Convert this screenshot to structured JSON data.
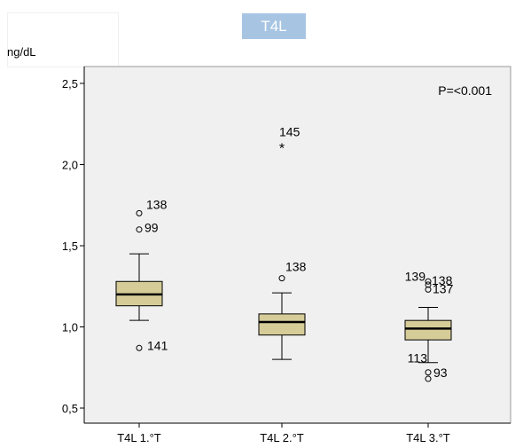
{
  "chart_data": {
    "type": "boxplot",
    "title": "T4L",
    "ylabel": "ng/dL",
    "ylim": [
      0.45,
      2.5
    ],
    "yticks": [
      "2,5",
      "2,0",
      "1,5",
      "1,0",
      "0,5"
    ],
    "ytick_values": [
      2.5,
      2.0,
      1.5,
      1.0,
      0.5
    ],
    "categories": [
      "T4L 1.°T",
      "T4L 2.°T",
      "T4L 3.°T"
    ],
    "annotation": "P=<0.001",
    "colors": {
      "box_fill": "#d5cc98",
      "plot_bg": "#f0f0f0",
      "title_bg": "#a7c5e3"
    },
    "boxes": [
      {
        "whisker_low": 1.04,
        "q1": 1.13,
        "median": 1.2,
        "q3": 1.28,
        "whisker_high": 1.45,
        "outliers": [
          {
            "value": 1.7,
            "label": "138",
            "marker": "circle"
          },
          {
            "value": 1.6,
            "label": "99",
            "marker": "circle"
          },
          {
            "value": 0.87,
            "label": "141",
            "marker": "circle"
          }
        ]
      },
      {
        "whisker_low": 0.8,
        "q1": 0.95,
        "median": 1.03,
        "q3": 1.08,
        "whisker_high": 1.21,
        "outliers": [
          {
            "value": 2.11,
            "label": "145",
            "marker": "star"
          },
          {
            "value": 1.3,
            "label": "138",
            "marker": "circle"
          }
        ]
      },
      {
        "whisker_low": 0.78,
        "q1": 0.92,
        "median": 0.99,
        "q3": 1.04,
        "whisker_high": 1.12,
        "outliers": [
          {
            "value": 1.28,
            "label": "139",
            "marker": "circle"
          },
          {
            "value": 1.26,
            "label": "138",
            "marker": "circle"
          },
          {
            "value": 1.23,
            "label": "137",
            "marker": "circle"
          },
          {
            "value": 0.72,
            "label": "113",
            "marker": "circle"
          },
          {
            "value": 0.68,
            "label": "93",
            "marker": "circle"
          }
        ]
      }
    ]
  }
}
